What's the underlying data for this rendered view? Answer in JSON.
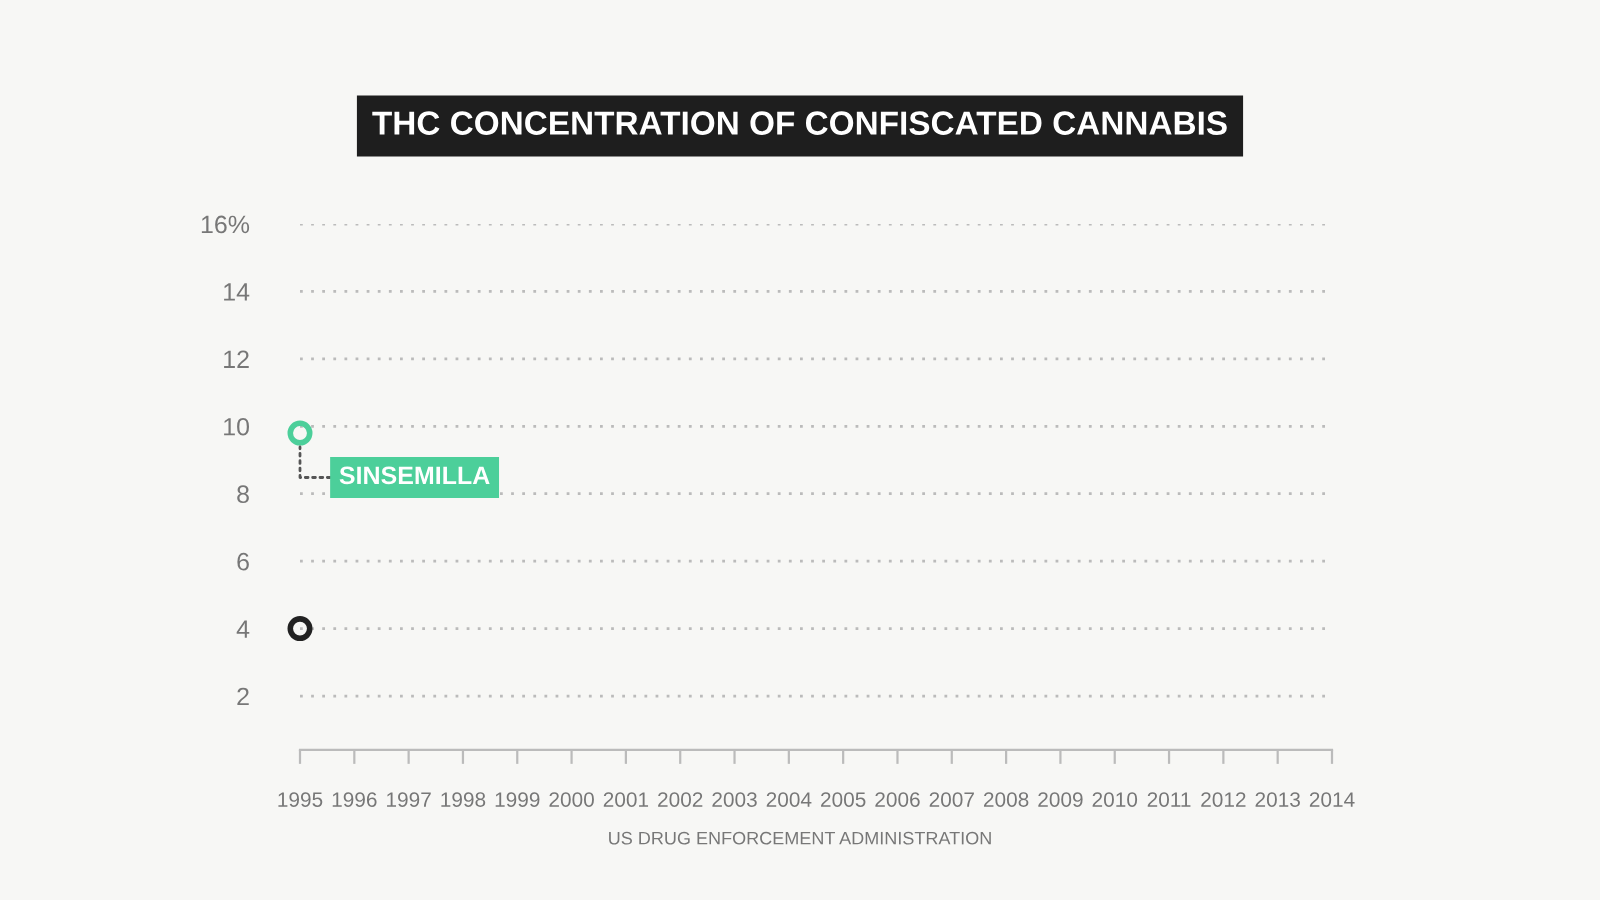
{
  "chart_data": {
    "type": "line",
    "title": "THC CONCENTRATION OF CONFISCATED CANNABIS",
    "x": [
      1995
    ],
    "series": [
      {
        "name": "SINSEMILLA",
        "color": "#4ccf9a",
        "values": [
          9.8
        ]
      },
      {
        "color": "#222222",
        "values": [
          4.0
        ]
      }
    ],
    "xlim": [
      1995,
      2014
    ],
    "xticks": [
      1995,
      1996,
      1997,
      1998,
      1999,
      2000,
      2001,
      2002,
      2003,
      2004,
      2005,
      2006,
      2007,
      2008,
      2009,
      2010,
      2011,
      2012,
      2013,
      2014
    ],
    "ylim": [
      0.4,
      16
    ],
    "yticks": [
      2,
      4,
      6,
      8,
      10,
      12,
      14,
      {
        "value": 16,
        "label": "16%"
      }
    ],
    "grid": "y",
    "marker": "circle",
    "legend": false,
    "annotations": [
      "US DRUG ENFORCEMENT ADMINISTRATION"
    ]
  }
}
